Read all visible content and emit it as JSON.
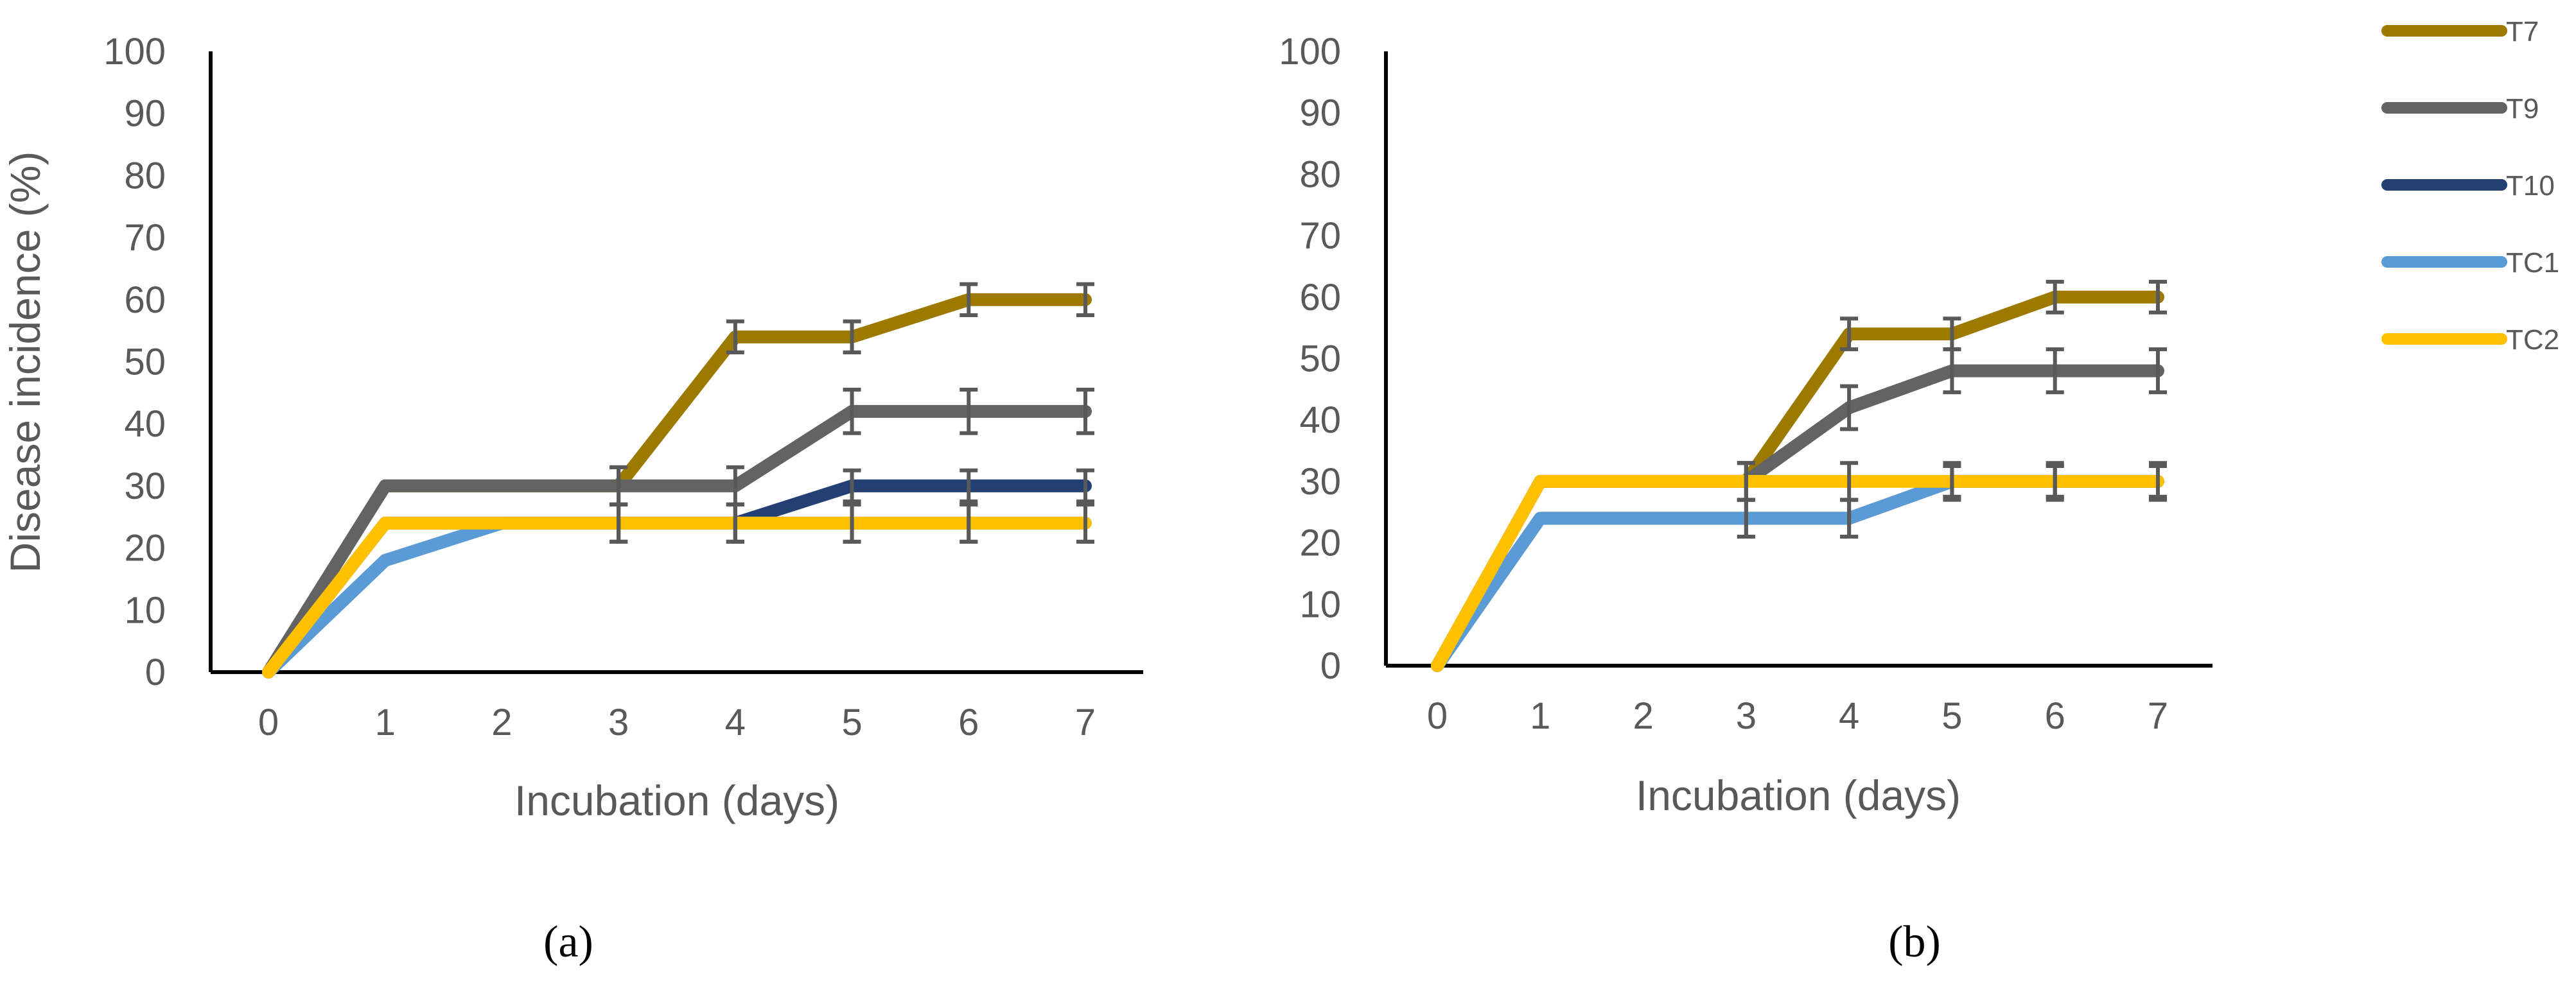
{
  "chart_data": [
    {
      "type": "line",
      "panel_label": "(a)",
      "xlabel": "Incubation (days)",
      "ylabel": "Disease incidence (%)",
      "x": [
        0,
        1,
        2,
        3,
        4,
        5,
        6,
        7
      ],
      "xticks": [
        "0",
        "1",
        "2",
        "3",
        "4",
        "5",
        "6",
        "7"
      ],
      "ylim": [
        0,
        100
      ],
      "yticks": [
        "0",
        "10",
        "20",
        "30",
        "40",
        "50",
        "60",
        "70",
        "80",
        "90",
        "100"
      ],
      "grid": false,
      "series": [
        {
          "name": "T7",
          "color": "#9C7A00",
          "values": [
            0,
            30,
            30,
            30,
            54,
            54,
            60,
            60
          ],
          "error": [
            0,
            0,
            0,
            3,
            2.5,
            2.5,
            2.5,
            2.5
          ]
        },
        {
          "name": "T9",
          "color": "#636363",
          "values": [
            0,
            30,
            30,
            30,
            30,
            42,
            42,
            42
          ],
          "error": [
            0,
            0,
            0,
            3,
            3,
            3.5,
            3.5,
            3.5
          ]
        },
        {
          "name": "T10",
          "color": "#243F73",
          "values": [
            0,
            24,
            24,
            24,
            24,
            30,
            30,
            30
          ],
          "error": [
            0,
            0,
            0,
            3,
            3,
            2.5,
            2.5,
            2.5
          ]
        },
        {
          "name": "TC1",
          "color": "#5B9BD5",
          "values": [
            0,
            18,
            24,
            24,
            24,
            24,
            24,
            24
          ],
          "error": [
            0,
            0,
            0,
            3,
            3,
            3,
            3,
            3
          ]
        },
        {
          "name": "TC2",
          "color": "#FFC000",
          "values": [
            0,
            24,
            24,
            24,
            24,
            24,
            24,
            24
          ],
          "error": [
            0,
            0,
            0,
            3,
            3,
            3,
            3,
            3
          ]
        }
      ]
    },
    {
      "type": "line",
      "panel_label": "(b)",
      "xlabel": "Incubation (days)",
      "ylabel": "",
      "x": [
        0,
        1,
        2,
        3,
        4,
        5,
        6,
        7
      ],
      "xticks": [
        "0",
        "1",
        "2",
        "3",
        "4",
        "5",
        "6",
        "7"
      ],
      "ylim": [
        0,
        100
      ],
      "yticks": [
        "0",
        "10",
        "20",
        "30",
        "40",
        "50",
        "60",
        "70",
        "80",
        "90",
        "100"
      ],
      "grid": false,
      "series": [
        {
          "name": "T7",
          "color": "#9C7A00",
          "values": [
            0,
            30,
            30,
            30,
            54,
            54,
            60,
            60
          ],
          "error": [
            0,
            0,
            0,
            3,
            2.5,
            2.5,
            2.5,
            2.5
          ]
        },
        {
          "name": "T9",
          "color": "#636363",
          "values": [
            0,
            30,
            30,
            30,
            42,
            48,
            48,
            48
          ],
          "error": [
            0,
            0,
            0,
            3,
            3.5,
            3.5,
            3.5,
            3.5
          ]
        },
        {
          "name": "T10",
          "color": "#243F73",
          "values": [
            0,
            24,
            24,
            24,
            24,
            30,
            30,
            30
          ],
          "error": [
            0,
            0,
            0,
            3,
            3,
            2.5,
            2.5,
            2.5
          ]
        },
        {
          "name": "TC1",
          "color": "#5B9BD5",
          "values": [
            0,
            24,
            24,
            24,
            24,
            30,
            30,
            30
          ],
          "error": [
            0,
            0,
            0,
            3,
            3,
            2.5,
            2.5,
            2.5
          ]
        },
        {
          "name": "TC2",
          "color": "#FFC000",
          "values": [
            0,
            30,
            30,
            30,
            30,
            30,
            30,
            30
          ],
          "error": [
            0,
            0,
            0,
            3,
            3,
            3,
            3,
            3
          ]
        }
      ]
    }
  ],
  "legend": {
    "placement": "right",
    "items": [
      {
        "label": "T7",
        "color": "#9C7A00"
      },
      {
        "label": "T9",
        "color": "#636363"
      },
      {
        "label": "T10",
        "color": "#243F73"
      },
      {
        "label": "TC1",
        "color": "#5B9BD5"
      },
      {
        "label": "TC2",
        "color": "#FFC000"
      }
    ]
  }
}
